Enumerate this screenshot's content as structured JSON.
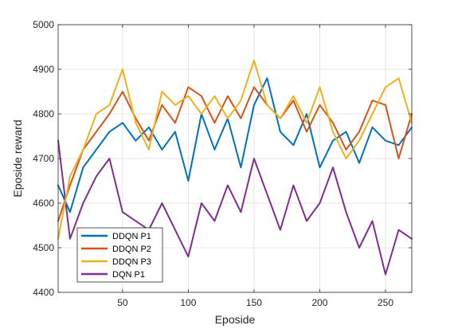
{
  "chart_data": {
    "type": "line",
    "xlabel": "Eposide",
    "ylabel": "Eposide reward",
    "xlim": [
      1,
      270
    ],
    "ylim": [
      4400,
      5000
    ],
    "xticks": [
      50,
      100,
      150,
      200,
      250
    ],
    "yticks": [
      4400,
      4500,
      4600,
      4700,
      4800,
      4900,
      5000
    ],
    "grid": true,
    "legend_position": "bottom-left",
    "x": [
      1,
      10,
      20,
      30,
      40,
      50,
      60,
      70,
      80,
      90,
      100,
      110,
      120,
      130,
      140,
      150,
      160,
      170,
      180,
      190,
      200,
      210,
      220,
      230,
      240,
      250,
      260,
      270
    ],
    "series": [
      {
        "name": "DDQN P1",
        "color": "#0072BD",
        "values": [
          4640,
          4580,
          4680,
          4720,
          4760,
          4780,
          4740,
          4770,
          4720,
          4760,
          4650,
          4800,
          4720,
          4790,
          4680,
          4820,
          4880,
          4760,
          4730,
          4800,
          4680,
          4740,
          4760,
          4690,
          4770,
          4740,
          4730,
          4770
        ]
      },
      {
        "name": "DDQN P2",
        "color": "#D95319",
        "values": [
          4560,
          4640,
          4720,
          4760,
          4800,
          4850,
          4790,
          4740,
          4820,
          4780,
          4860,
          4840,
          4780,
          4840,
          4790,
          4860,
          4820,
          4790,
          4830,
          4760,
          4820,
          4780,
          4720,
          4760,
          4830,
          4820,
          4700,
          4800
        ]
      },
      {
        "name": "DDQN P3",
        "color": "#EDB120",
        "values": [
          4520,
          4660,
          4720,
          4800,
          4820,
          4900,
          4780,
          4720,
          4850,
          4820,
          4840,
          4800,
          4840,
          4790,
          4830,
          4920,
          4820,
          4790,
          4840,
          4780,
          4860,
          4760,
          4700,
          4740,
          4800,
          4860,
          4880,
          4780
        ]
      },
      {
        "name": "DQN P1",
        "color": "#7E2F8E",
        "values": [
          4740,
          4520,
          4600,
          4660,
          4700,
          4580,
          4560,
          4540,
          4600,
          4540,
          4480,
          4600,
          4560,
          4640,
          4580,
          4700,
          4620,
          4540,
          4640,
          4560,
          4600,
          4680,
          4580,
          4500,
          4560,
          4440,
          4540,
          4520
        ]
      }
    ]
  }
}
